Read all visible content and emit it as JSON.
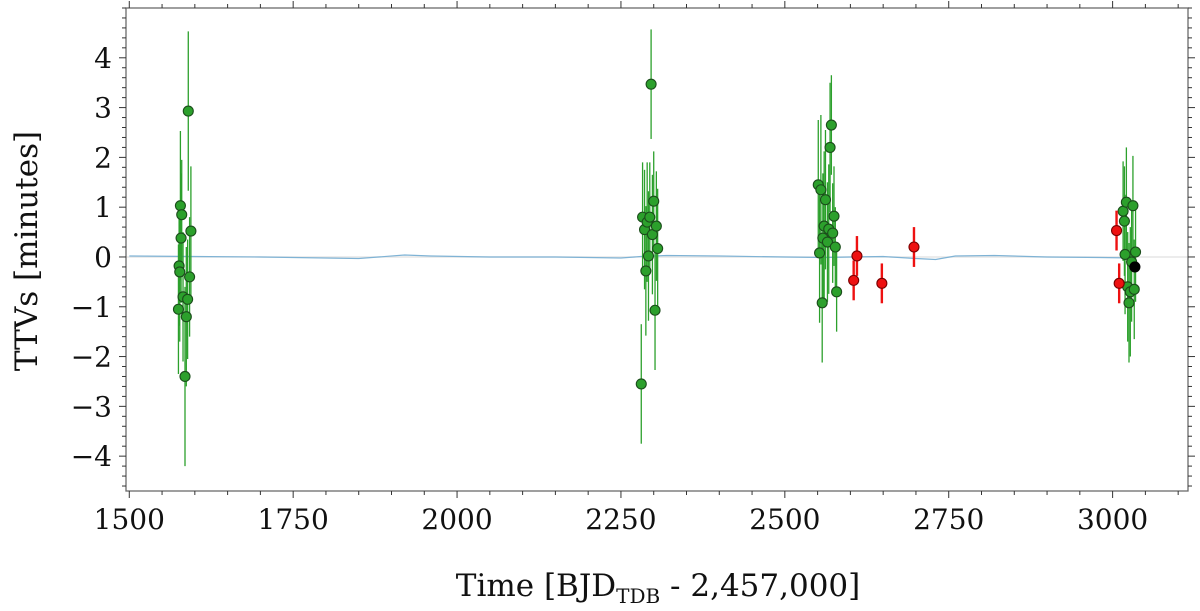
{
  "chart_data": {
    "type": "scatter",
    "xlabel": "Time [BJD",
    "xlabel_sub": "TDB",
    "xlabel_tail": " - 2,457,000]",
    "ylabel": "TTVs [minutes]",
    "xlim": [
      1495,
      3115
    ],
    "ylim": [
      -4.7,
      5.0
    ],
    "xticks": [
      1500,
      1750,
      2000,
      2250,
      2500,
      2750,
      3000
    ],
    "yticks": [
      -4,
      -3,
      -2,
      -1,
      0,
      1,
      2,
      3,
      4
    ],
    "grid": false,
    "colors": {
      "green": "#2ca02c",
      "green_edge": "#1b4d1b",
      "red": "#ee1111",
      "black": "#000000",
      "model": "#7fb3d5",
      "zero_line": "#e6e6e6"
    },
    "series": [
      {
        "color": "green",
        "points": [
          {
            "x": 1575,
            "y": -1.05,
            "err": 1.3
          },
          {
            "x": 1576,
            "y": -0.18,
            "err": 1.2
          },
          {
            "x": 1577,
            "y": -0.3,
            "err": 1.4
          },
          {
            "x": 1578,
            "y": 1.03,
            "err": 1.5
          },
          {
            "x": 1579,
            "y": 0.38,
            "err": 1.3
          },
          {
            "x": 1580,
            "y": 0.85,
            "err": 1.1
          },
          {
            "x": 1582,
            "y": -0.8,
            "err": 1.3
          },
          {
            "x": 1585,
            "y": -2.4,
            "err": 1.8
          },
          {
            "x": 1587,
            "y": -1.2,
            "err": 1.4
          },
          {
            "x": 1589,
            "y": -0.85,
            "err": 1.2
          },
          {
            "x": 1590,
            "y": 2.93,
            "err": 1.6
          },
          {
            "x": 1592,
            "y": -0.4,
            "err": 1.2
          },
          {
            "x": 1594,
            "y": 0.52,
            "err": 1.3
          },
          {
            "x": 2281,
            "y": -2.55,
            "err": 1.2
          },
          {
            "x": 2283,
            "y": 0.8,
            "err": 1.1
          },
          {
            "x": 2286,
            "y": 0.55,
            "err": 1.2
          },
          {
            "x": 2288,
            "y": -0.28,
            "err": 1.3
          },
          {
            "x": 2290,
            "y": 0.7,
            "err": 1.2
          },
          {
            "x": 2292,
            "y": 0.02,
            "err": 1.3
          },
          {
            "x": 2294,
            "y": 0.8,
            "err": 1.1
          },
          {
            "x": 2296,
            "y": 3.47,
            "err": 1.1
          },
          {
            "x": 2298,
            "y": 0.45,
            "err": 1.2
          },
          {
            "x": 2300,
            "y": 1.12,
            "err": 1.0
          },
          {
            "x": 2302,
            "y": -1.07,
            "err": 1.2
          },
          {
            "x": 2304,
            "y": 0.62,
            "err": 1.1
          },
          {
            "x": 2306,
            "y": 0.17,
            "err": 1.2
          },
          {
            "x": 2551,
            "y": 1.45,
            "err": 1.3
          },
          {
            "x": 2553,
            "y": 0.08,
            "err": 1.4
          },
          {
            "x": 2555,
            "y": 1.35,
            "err": 1.5
          },
          {
            "x": 2557,
            "y": -0.92,
            "err": 1.2
          },
          {
            "x": 2558,
            "y": 0.38,
            "err": 1.3
          },
          {
            "x": 2560,
            "y": 0.62,
            "err": 1.5
          },
          {
            "x": 2562,
            "y": 1.15,
            "err": 1.4
          },
          {
            "x": 2565,
            "y": 0.3,
            "err": 1.2
          },
          {
            "x": 2567,
            "y": 0.56,
            "err": 1.3
          },
          {
            "x": 2569,
            "y": 2.2,
            "err": 1.3
          },
          {
            "x": 2571,
            "y": 2.65,
            "err": 1.0
          },
          {
            "x": 2573,
            "y": 0.48,
            "err": 1.0
          },
          {
            "x": 2575,
            "y": 0.82,
            "err": 1.0
          },
          {
            "x": 2577,
            "y": 0.2,
            "err": 0.8
          },
          {
            "x": 2579,
            "y": -0.7,
            "err": 0.8
          },
          {
            "x": 3016,
            "y": 0.92,
            "err": 1.0
          },
          {
            "x": 3018,
            "y": 0.72,
            "err": 1.1
          },
          {
            "x": 3019,
            "y": 0.05,
            "err": 1.2
          },
          {
            "x": 3021,
            "y": 1.1,
            "err": 1.1
          },
          {
            "x": 3023,
            "y": -0.6,
            "err": 1.1
          },
          {
            "x": 3025,
            "y": -0.92,
            "err": 1.2
          },
          {
            "x": 3027,
            "y": -0.7,
            "err": 1.3
          },
          {
            "x": 3029,
            "y": -0.1,
            "err": 1.2
          },
          {
            "x": 3031,
            "y": 1.03,
            "err": 1.0
          },
          {
            "x": 3033,
            "y": -0.65,
            "err": 1.0
          },
          {
            "x": 3035,
            "y": 0.1,
            "err": 1.0
          }
        ]
      },
      {
        "color": "red",
        "points": [
          {
            "x": 2605,
            "y": -0.47,
            "err": 0.4
          },
          {
            "x": 2610,
            "y": 0.02,
            "err": 0.4
          },
          {
            "x": 2648,
            "y": -0.53,
            "err": 0.4
          },
          {
            "x": 2697,
            "y": 0.2,
            "err": 0.4
          },
          {
            "x": 3006,
            "y": 0.53,
            "err": 0.4
          },
          {
            "x": 3010,
            "y": -0.53,
            "err": 0.4
          }
        ]
      },
      {
        "color": "black",
        "points": [
          {
            "x": 3034,
            "y": -0.2,
            "err": 0.0
          }
        ]
      }
    ],
    "model": {
      "color": "model",
      "x": [
        1500,
        1600,
        1700,
        1800,
        1850,
        1880,
        1920,
        1960,
        2050,
        2150,
        2250,
        2280,
        2320,
        2400,
        2500,
        2560,
        2600,
        2650,
        2700,
        2730,
        2760,
        2820,
        2900,
        2980,
        3035
      ],
      "y": [
        0.02,
        0.01,
        0.0,
        -0.02,
        -0.03,
        0.0,
        0.04,
        0.02,
        0.0,
        0.0,
        -0.02,
        0.01,
        0.03,
        0.02,
        0.0,
        -0.01,
        0.0,
        0.01,
        -0.03,
        -0.05,
        0.02,
        0.03,
        0.0,
        -0.01,
        -0.02
      ]
    }
  }
}
